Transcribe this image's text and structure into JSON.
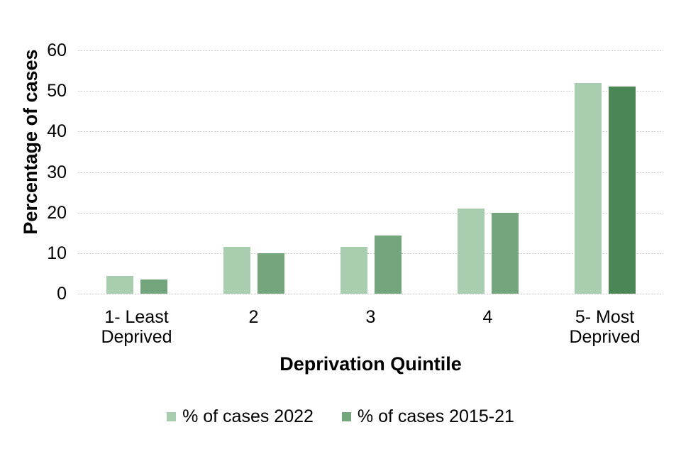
{
  "chart_data": {
    "type": "bar",
    "title": "",
    "xlabel": "Deprivation Quintile",
    "ylabel": "Percentage of cases",
    "categories": [
      "1- Least\nDeprived",
      "2",
      "3",
      "4",
      "5- Most\nDeprived"
    ],
    "series": [
      {
        "name": "% of cases 2022",
        "color": "#A8CEAF",
        "values": [
          4.3,
          11.5,
          11.5,
          21,
          52
        ]
      },
      {
        "name": "% of cases 2015-21",
        "color": "#74A57D",
        "values": [
          3.5,
          10,
          14.3,
          20,
          51
        ],
        "point_colors": [
          null,
          null,
          null,
          null,
          "#4A8656"
        ]
      }
    ],
    "ylim": [
      0,
      60
    ],
    "yticks": [
      0,
      10,
      20,
      30,
      40,
      50,
      60
    ],
    "grid": true,
    "gridline_color": "#c9c9c9",
    "legend_position": "bottom"
  }
}
